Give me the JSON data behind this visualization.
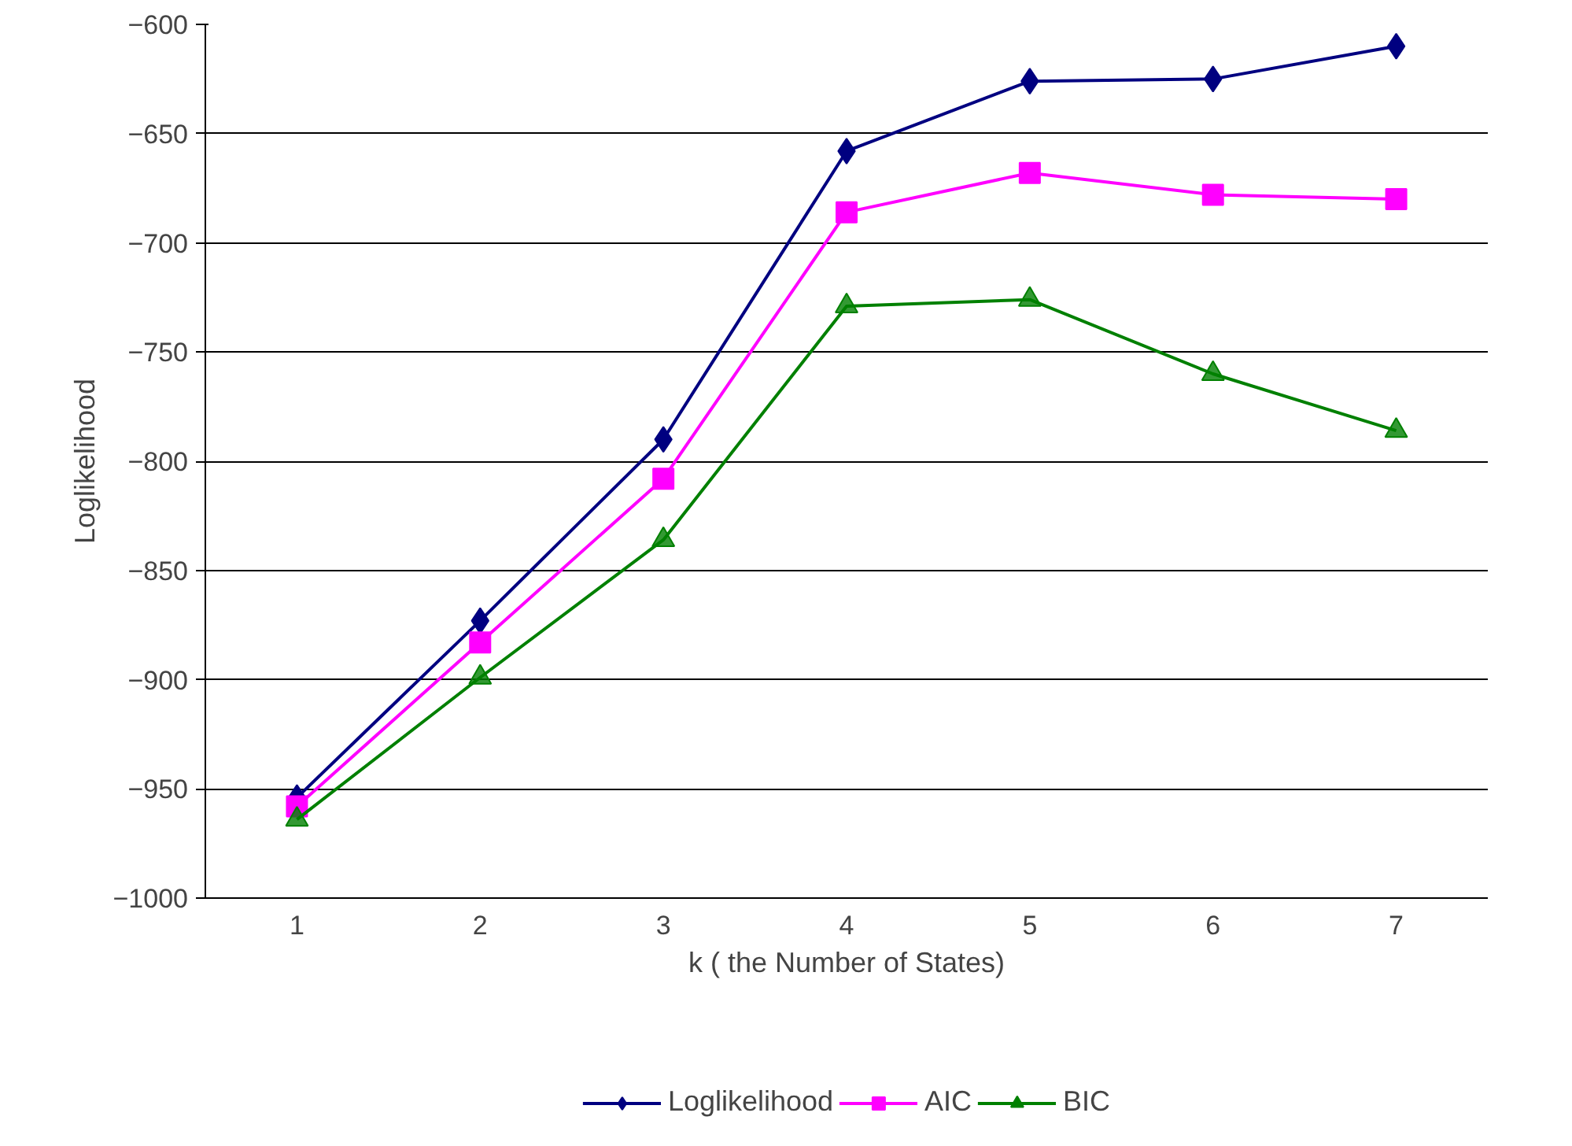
{
  "chart_data": {
    "type": "line",
    "xlabel": "k ( the Number of States)",
    "ylabel": "Loglikelihood",
    "categories": [
      "1",
      "2",
      "3",
      "4",
      "5",
      "6",
      "7"
    ],
    "series": [
      {
        "name": "Loglikelihood",
        "color": "#000080",
        "marker": "diamond",
        "values": [
          -954,
          -873,
          -790,
          -658,
          -626,
          -625,
          -610
        ]
      },
      {
        "name": "AIC",
        "color": "#ff00ff",
        "marker": "square",
        "values": [
          -958,
          -883,
          -808,
          -686,
          -668,
          -678,
          -680
        ]
      },
      {
        "name": "BIC",
        "color": "#008000",
        "marker": "triangle",
        "values": [
          -964,
          -899,
          -836,
          -729,
          -726,
          -760,
          -786
        ]
      }
    ],
    "ylim": [
      -1000,
      -600
    ],
    "yticks": [
      -1000,
      -950,
      -900,
      -850,
      -800,
      -750,
      -700,
      -650,
      -600
    ],
    "grid": "y",
    "legend": "bottom",
    "line_style": "solid"
  }
}
